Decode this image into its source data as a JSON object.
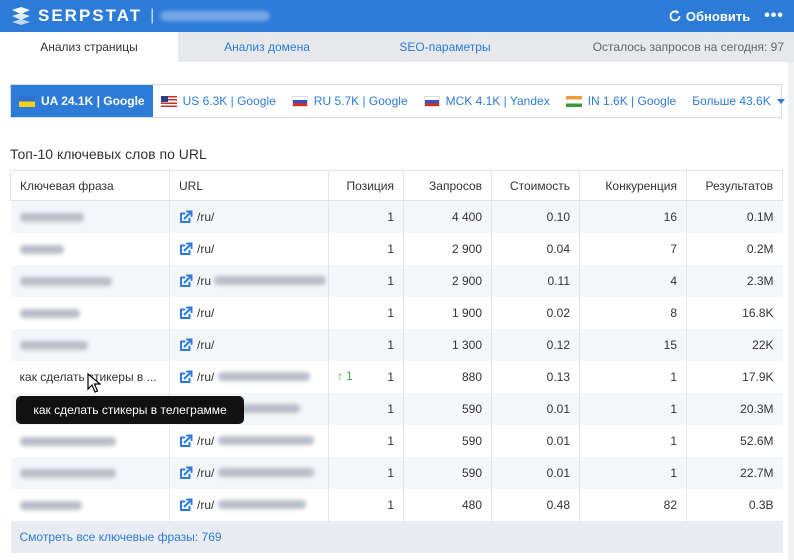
{
  "header": {
    "logo_text": "SERPSTAT",
    "separator": "|",
    "refresh_label": "Обновить",
    "more_label": "•••",
    "accent": "#2c7bd7"
  },
  "tabs": [
    {
      "label": "Анализ страницы",
      "active": true
    },
    {
      "label": "Анализ домена",
      "active": false
    },
    {
      "label": "SEO-параметры",
      "active": false
    }
  ],
  "quota_text": "Осталось запросов на сегодня: 97",
  "regions": [
    {
      "flag": "ua",
      "label": "UA 24.1K | Google",
      "active": true
    },
    {
      "flag": "us",
      "label": "US 6.3K | Google",
      "active": false
    },
    {
      "flag": "ru",
      "label": "RU 5.7K | Google",
      "active": false
    },
    {
      "flag": "ru",
      "label": "MCK 4.1K | Yandex",
      "active": false
    },
    {
      "flag": "in",
      "label": "IN 1.6K | Google",
      "active": false
    }
  ],
  "regions_more_label": "Больше 43.6K",
  "section_title": "Топ-10 ключевых слов по URL",
  "table": {
    "headers": {
      "keyword": "Ключевая фраза",
      "url": "URL",
      "position": "Позиция",
      "queries": "Запросов",
      "cost": "Стоимость",
      "competition": "Конкуренция",
      "results": "Результатов"
    },
    "rows": [
      {
        "keyword": "",
        "url": "/ru/",
        "position": "1",
        "queries": "4 400",
        "cost": "0.10",
        "competition": "16",
        "results": "0.1M"
      },
      {
        "keyword": "",
        "url": "/ru/",
        "position": "1",
        "queries": "2 900",
        "cost": "0.04",
        "competition": "7",
        "results": "0.2M"
      },
      {
        "keyword": "",
        "url": "/ru",
        "position": "1",
        "queries": "2 900",
        "cost": "0.11",
        "competition": "4",
        "results": "2.3M"
      },
      {
        "keyword": "",
        "url": "/ru/",
        "position": "1",
        "queries": "1 900",
        "cost": "0.02",
        "competition": "8",
        "results": "16.8K"
      },
      {
        "keyword": "",
        "url": "/ru/",
        "position": "1",
        "queries": "1 300",
        "cost": "0.12",
        "competition": "15",
        "results": "22K"
      },
      {
        "keyword": "как сделать стикеры в ...",
        "url": "/ru/",
        "trend": "1",
        "position": "1",
        "queries": "880",
        "cost": "0.13",
        "competition": "1",
        "results": "17.9K"
      },
      {
        "keyword": "",
        "url": "",
        "position": "1",
        "queries": "590",
        "cost": "0.01",
        "competition": "1",
        "results": "20.3M"
      },
      {
        "keyword": "",
        "url": "/ru/",
        "position": "1",
        "queries": "590",
        "cost": "0.01",
        "competition": "1",
        "results": "52.6M"
      },
      {
        "keyword": "",
        "url": "/ru/",
        "position": "1",
        "queries": "590",
        "cost": "0.01",
        "competition": "1",
        "results": "22.7M"
      },
      {
        "keyword": "",
        "url": "/ru/",
        "position": "1",
        "queries": "480",
        "cost": "0.48",
        "competition": "82",
        "results": "0.3B"
      }
    ],
    "footer_link": "Смотреть все ключевые фразы: 769"
  },
  "tooltip_text": "как сделать стикеры в телеграмме"
}
